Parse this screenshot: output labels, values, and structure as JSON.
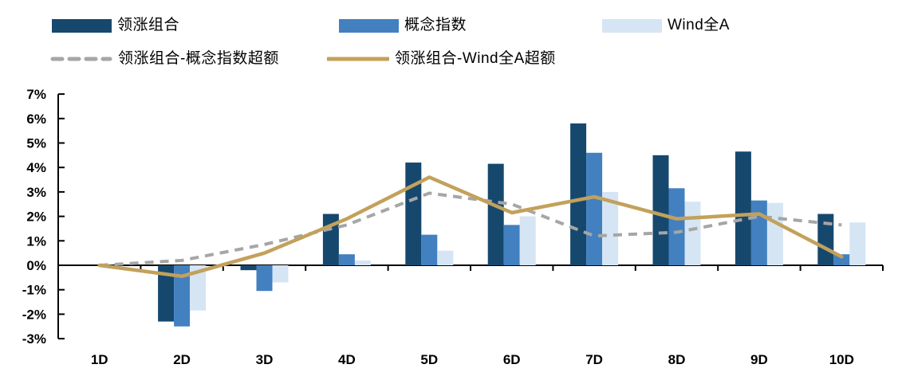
{
  "chart_data": {
    "type": "bar",
    "title": "",
    "xlabel": "",
    "ylabel": "",
    "ylim": [
      -3,
      7
    ],
    "grid": false,
    "legend_position": "top",
    "categories": [
      "1D",
      "2D",
      "3D",
      "4D",
      "5D",
      "6D",
      "7D",
      "8D",
      "9D",
      "10D"
    ],
    "y_ticks": [
      "7%",
      "6%",
      "5%",
      "4%",
      "3%",
      "2%",
      "1%",
      "0%",
      "-1%",
      "-2%",
      "-3%"
    ],
    "series": [
      {
        "name": "领涨组合",
        "kind": "bar",
        "color": "#16486E",
        "values": [
          0,
          -2.3,
          -0.2,
          2.1,
          4.2,
          4.15,
          5.8,
          4.5,
          4.65,
          2.1
        ]
      },
      {
        "name": "概念指数",
        "kind": "bar",
        "color": "#4280C0",
        "values": [
          0,
          -2.5,
          -1.05,
          0.45,
          1.25,
          1.65,
          4.6,
          3.15,
          2.65,
          0.45
        ]
      },
      {
        "name": "Wind全A",
        "kind": "bar",
        "color": "#D5E5F4",
        "values": [
          0,
          -1.85,
          -0.7,
          0.2,
          0.6,
          2.0,
          3.0,
          2.6,
          2.55,
          1.75
        ]
      },
      {
        "name": "领涨组合-概念指数超额",
        "kind": "line",
        "line_style": "dashed",
        "color": "#A6A6A6",
        "values": [
          0,
          0.2,
          0.85,
          1.65,
          2.95,
          2.5,
          1.2,
          1.35,
          2.0,
          1.65
        ]
      },
      {
        "name": "领涨组合-Wind全A超额",
        "kind": "line",
        "line_style": "solid",
        "color": "#C3A15B",
        "values": [
          0,
          -0.45,
          0.5,
          1.9,
          3.6,
          2.15,
          2.8,
          1.9,
          2.1,
          0.35
        ]
      }
    ],
    "axis_color": "#000000"
  }
}
